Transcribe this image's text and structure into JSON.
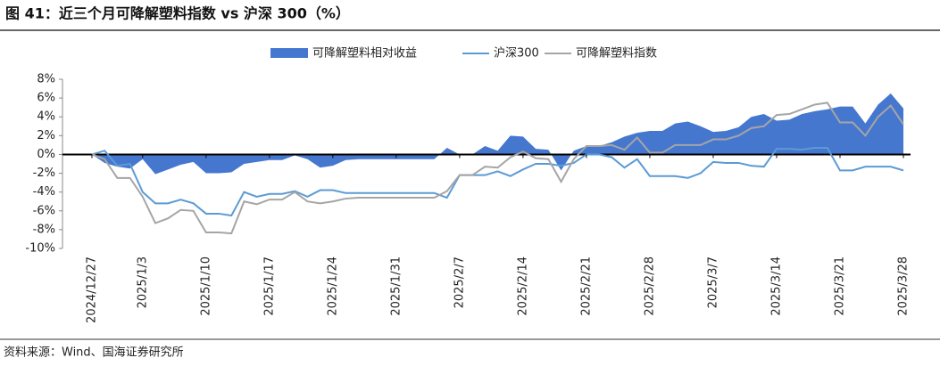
{
  "chart_data": {
    "type": "line",
    "title": "图 41：近三个月可降解塑料指数 vs 沪深 300（%）",
    "source": "资料来源：Wind、国海证券研究所",
    "categories": [
      "2024/12/27",
      null,
      null,
      null,
      "2025/1/3",
      null,
      null,
      null,
      null,
      "2025/1/10",
      null,
      null,
      null,
      null,
      "2025/1/17",
      null,
      null,
      null,
      null,
      "2025/1/24",
      null,
      null,
      null,
      null,
      "2025/1/31",
      null,
      null,
      null,
      null,
      "2025/2/7",
      null,
      null,
      null,
      null,
      "2025/2/14",
      null,
      null,
      null,
      null,
      "2025/2/21",
      null,
      null,
      null,
      null,
      "2025/2/28",
      null,
      null,
      null,
      null,
      "2025/3/7",
      null,
      null,
      null,
      null,
      "2025/3/14",
      null,
      null,
      null,
      null,
      "2025/3/21",
      null,
      null,
      null,
      null,
      "2025/3/28"
    ],
    "series": [
      {
        "name": "可降解塑料相对收益",
        "kind": "area",
        "color": "#4677cf",
        "values": [
          0,
          -0.9,
          -1.3,
          -1.5,
          -0.5,
          -2.1,
          -1.6,
          -1.1,
          -0.8,
          -2.0,
          -2.0,
          -1.9,
          -1.0,
          -0.8,
          -0.6,
          -0.6,
          -0.1,
          -0.5,
          -1.4,
          -1.2,
          -0.6,
          -0.5,
          -0.5,
          -0.5,
          -0.5,
          -0.5,
          -0.5,
          -0.5,
          0.7,
          0,
          0,
          0.9,
          0.4,
          2.0,
          1.9,
          0.6,
          0.5,
          -1.7,
          0.4,
          0.9,
          0.9,
          1.3,
          1.9,
          2.3,
          2.5,
          2.5,
          3.3,
          3.5,
          3.0,
          2.4,
          2.5,
          2.9,
          4.0,
          4.3,
          3.6,
          3.7,
          4.3,
          4.6,
          4.8,
          5.1,
          5.1,
          3.3,
          5.3,
          6.5,
          4.9
        ]
      },
      {
        "name": "沪深300",
        "kind": "line",
        "color": "#5b9bd5",
        "values": [
          0,
          0.4,
          -1.2,
          -1.0,
          -4.0,
          -5.2,
          -5.2,
          -4.8,
          -5.2,
          -6.3,
          -6.3,
          -6.5,
          -4.0,
          -4.5,
          -4.2,
          -4.2,
          -3.9,
          -4.5,
          -3.8,
          -3.8,
          -4.1,
          -4.1,
          -4.1,
          -4.1,
          -4.1,
          -4.1,
          -4.1,
          -4.1,
          -4.6,
          -2.2,
          -2.2,
          -2.2,
          -1.8,
          -2.3,
          -1.6,
          -1.0,
          -1.0,
          -1.2,
          -0.9,
          0,
          0,
          -0.3,
          -1.4,
          -0.5,
          -2.3,
          -2.3,
          -2.3,
          -2.5,
          -2.0,
          -0.8,
          -0.9,
          -0.9,
          -1.2,
          -1.3,
          0.6,
          0.6,
          0.5,
          0.7,
          0.7,
          -1.7,
          -1.7,
          -1.3,
          -1.3,
          -1.3,
          -1.7
        ]
      },
      {
        "name": "可降解塑料指数",
        "kind": "line",
        "color": "#a5a5a5",
        "values": [
          0,
          -0.5,
          -2.5,
          -2.5,
          -4.5,
          -7.3,
          -6.8,
          -5.9,
          -6.0,
          -8.3,
          -8.3,
          -8.4,
          -5.0,
          -5.3,
          -4.8,
          -4.8,
          -4.0,
          -5.0,
          -5.2,
          -5.0,
          -4.7,
          -4.6,
          -4.6,
          -4.6,
          -4.6,
          -4.6,
          -4.6,
          -4.6,
          -3.9,
          -2.2,
          -2.2,
          -1.3,
          -1.4,
          -0.3,
          0.3,
          -0.4,
          -0.5,
          -2.9,
          -0.5,
          0.9,
          0.9,
          1.0,
          0.5,
          1.8,
          0.2,
          0.2,
          1.0,
          1.0,
          1.0,
          1.6,
          1.6,
          2.0,
          2.8,
          3.0,
          4.2,
          4.3,
          4.8,
          5.3,
          5.5,
          3.4,
          3.4,
          2.0,
          4.0,
          5.2,
          3.2
        ]
      }
    ],
    "ylim": [
      -10,
      8
    ],
    "yticks": [
      {
        "value": -10,
        "label": "-10%"
      },
      {
        "value": -8,
        "label": "-8%"
      },
      {
        "value": -6,
        "label": "-6%"
      },
      {
        "value": -4,
        "label": "-4%"
      },
      {
        "value": -2,
        "label": "-2%"
      },
      {
        "value": 0,
        "label": "0%"
      },
      {
        "value": 2,
        "label": "2%"
      },
      {
        "value": 4,
        "label": "4%"
      },
      {
        "value": 6,
        "label": "6%"
      },
      {
        "value": 8,
        "label": "8%"
      }
    ],
    "legend": "top"
  }
}
